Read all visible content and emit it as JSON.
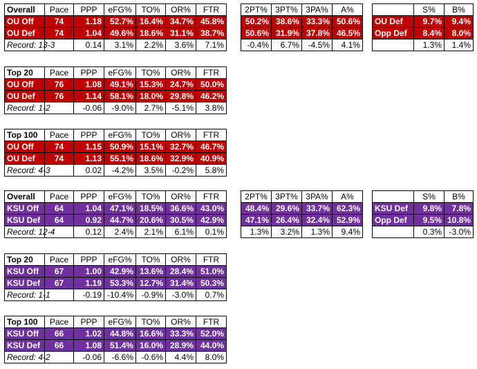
{
  "theme": {
    "ou_color": "#c00000",
    "ksu_color": "#7030a0"
  },
  "main_headers": [
    "Pace",
    "PPP",
    "eFG%",
    "TO%",
    "OR%",
    "FTR"
  ],
  "shoot_headers": [
    "2PT%",
    "3PT%",
    "3PA%",
    "A%"
  ],
  "sb_headers": [
    "S%",
    "B%"
  ],
  "ou": {
    "overall": {
      "title": "Overall",
      "rows": [
        {
          "label": "OU Off",
          "cells": [
            "74",
            "1.18",
            "52.7%",
            "16.4%",
            "34.7%",
            "45.8%"
          ]
        },
        {
          "label": "OU Def",
          "cells": [
            "74",
            "1.04",
            "49.6%",
            "18.6%",
            "31.1%",
            "38.7%"
          ]
        }
      ],
      "record": {
        "label": "Record: 13-3",
        "cells": [
          "0.14",
          "3.1%",
          "2.2%",
          "3.6%",
          "7.1%"
        ]
      }
    },
    "shooting": {
      "rows": [
        {
          "cells": [
            "50.2%",
            "38.6%",
            "33.3%",
            "50.6%"
          ]
        },
        {
          "cells": [
            "50.6%",
            "31.9%",
            "37.8%",
            "46.5%"
          ]
        }
      ],
      "diff": [
        "-0.4%",
        "6.7%",
        "-4.5%",
        "4.1%"
      ]
    },
    "sb": {
      "rows": [
        {
          "label": "OU Def",
          "cells": [
            "9.7%",
            "9.4%"
          ]
        },
        {
          "label": "Opp Def",
          "cells": [
            "8.4%",
            "8.0%"
          ]
        }
      ],
      "diff": [
        "1.3%",
        "1.4%"
      ]
    },
    "top20": {
      "title": "Top 20",
      "rows": [
        {
          "label": "OU Off",
          "cells": [
            "76",
            "1.08",
            "49.1%",
            "15.3%",
            "24.7%",
            "50.0%"
          ]
        },
        {
          "label": "OU Def",
          "cells": [
            "76",
            "1.14",
            "58.1%",
            "18.0%",
            "29.8%",
            "46.2%"
          ]
        }
      ],
      "record": {
        "label": "Record: 1-2",
        "cells": [
          "-0.06",
          "-9.0%",
          "2.7%",
          "-5.1%",
          "3.8%"
        ]
      }
    },
    "top100": {
      "title": "Top 100",
      "rows": [
        {
          "label": "OU Off",
          "cells": [
            "74",
            "1.15",
            "50.9%",
            "15.1%",
            "32.7%",
            "46.7%"
          ]
        },
        {
          "label": "OU Def",
          "cells": [
            "74",
            "1.13",
            "55.1%",
            "18.6%",
            "32.9%",
            "40.9%"
          ]
        }
      ],
      "record": {
        "label": "Record: 4-3",
        "cells": [
          "0.02",
          "-4.2%",
          "3.5%",
          "-0.2%",
          "5.8%"
        ]
      }
    }
  },
  "ksu": {
    "overall": {
      "title": "Overall",
      "rows": [
        {
          "label": "KSU Off",
          "cells": [
            "64",
            "1.04",
            "47.1%",
            "18.5%",
            "36.6%",
            "43.0%"
          ]
        },
        {
          "label": "KSU Def",
          "cells": [
            "64",
            "0.92",
            "44.7%",
            "20.6%",
            "30.5%",
            "42.9%"
          ]
        }
      ],
      "record": {
        "label": "Record: 12-4",
        "cells": [
          "0.12",
          "2.4%",
          "2.1%",
          "6.1%",
          "0.1%"
        ]
      }
    },
    "shooting": {
      "rows": [
        {
          "cells": [
            "48.4%",
            "29.6%",
            "33.7%",
            "62.3%"
          ]
        },
        {
          "cells": [
            "47.1%",
            "26.4%",
            "32.4%",
            "52.9%"
          ]
        }
      ],
      "diff": [
        "1.3%",
        "3.2%",
        "1.3%",
        "9.4%"
      ]
    },
    "sb": {
      "rows": [
        {
          "label": "KSU Def",
          "cells": [
            "9.8%",
            "7.8%"
          ]
        },
        {
          "label": "Opp Def",
          "cells": [
            "9.5%",
            "10.8%"
          ]
        }
      ],
      "diff": [
        "0.3%",
        "-3.0%"
      ]
    },
    "top20": {
      "title": "Top 20",
      "rows": [
        {
          "label": "KSU Off",
          "cells": [
            "67",
            "1.00",
            "42.9%",
            "13.6%",
            "28.4%",
            "51.0%"
          ]
        },
        {
          "label": "KSU Def",
          "cells": [
            "67",
            "1.19",
            "53.3%",
            "12.7%",
            "31.4%",
            "50.3%"
          ]
        }
      ],
      "record": {
        "label": "Record: 1-1",
        "cells": [
          "-0.19",
          "-10.4%",
          "-0.9%",
          "-3.0%",
          "0.7%"
        ]
      }
    },
    "top100": {
      "title": "Top 100",
      "rows": [
        {
          "label": "KSU Off",
          "cells": [
            "66",
            "1.02",
            "44.8%",
            "16.6%",
            "33.3%",
            "52.0%"
          ]
        },
        {
          "label": "KSU Def",
          "cells": [
            "66",
            "1.08",
            "51.4%",
            "16.0%",
            "28.9%",
            "44.0%"
          ]
        }
      ],
      "record": {
        "label": "Record: 4-2",
        "cells": [
          "-0.06",
          "-6.6%",
          "-0.6%",
          "4.4%",
          "8.0%"
        ]
      }
    }
  }
}
